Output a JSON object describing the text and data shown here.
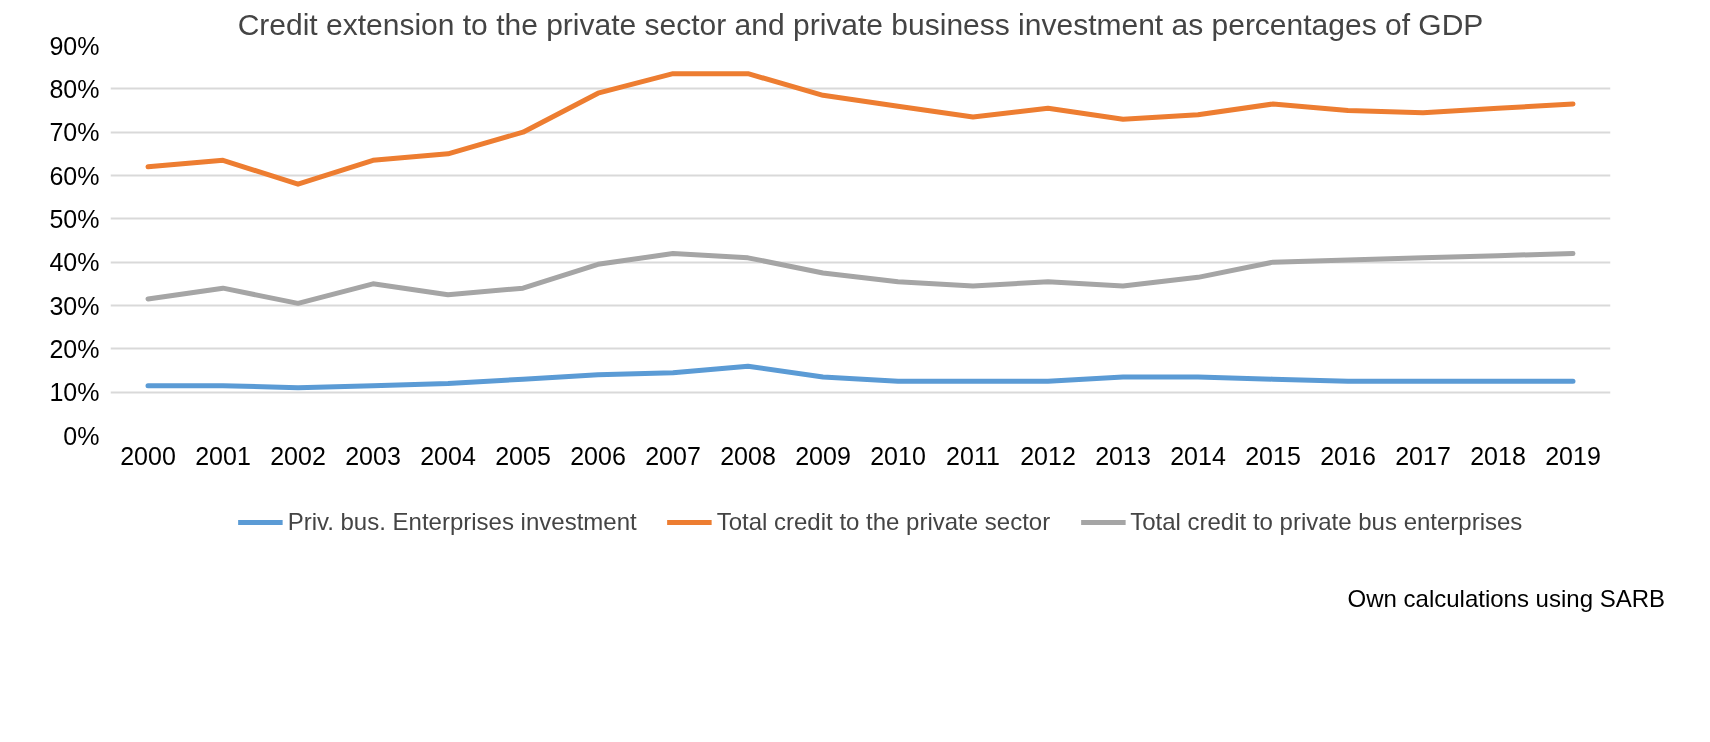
{
  "chart_data": {
    "type": "line",
    "title": "Credit extension to the private sector and private business investment as percentages of GDP",
    "categories": [
      "2000",
      "2001",
      "2002",
      "2003",
      "2004",
      "2005",
      "2006",
      "2007",
      "2008",
      "2009",
      "2010",
      "2011",
      "2012",
      "2013",
      "2014",
      "2015",
      "2016",
      "2017",
      "2018",
      "2019"
    ],
    "series": [
      {
        "name": "Priv. bus. Enterprises investment",
        "color": "#5b9bd5",
        "values": [
          11.5,
          11.5,
          11,
          11.5,
          12,
          13,
          14,
          14.5,
          16,
          13.5,
          12.5,
          12.5,
          12.5,
          13.5,
          13.5,
          13,
          12.5,
          12.5,
          12.5,
          12.5
        ]
      },
      {
        "name": "Total credit to the private sector",
        "color": "#ed7d31",
        "values": [
          62,
          63.5,
          58,
          63.5,
          65,
          70,
          79,
          83.5,
          83.5,
          78.5,
          76,
          73.5,
          75.5,
          73,
          74,
          76.5,
          75,
          74.5,
          75.5,
          76.5
        ]
      },
      {
        "name": "Total credit to private bus enterprises",
        "color": "#a5a5a5",
        "values": [
          31.5,
          34,
          30.5,
          35,
          32.5,
          34,
          39.5,
          42,
          41,
          37.5,
          35.5,
          34.5,
          35.5,
          34.5,
          36.5,
          40,
          40.5,
          41,
          41.5,
          42
        ]
      }
    ],
    "ylim": [
      0,
      90
    ],
    "yticks": [
      {
        "value": 0,
        "label": "0%"
      },
      {
        "value": 10,
        "label": "10%"
      },
      {
        "value": 20,
        "label": "20%"
      },
      {
        "value": 30,
        "label": "30%"
      },
      {
        "value": 40,
        "label": "40%"
      },
      {
        "value": 50,
        "label": "50%"
      },
      {
        "value": 60,
        "label": "60%"
      },
      {
        "value": 70,
        "label": "70%"
      },
      {
        "value": 80,
        "label": "80%"
      },
      {
        "value": 90,
        "label": "90%"
      }
    ],
    "grid": "y",
    "legend": "bottom",
    "marker": "none",
    "line_style": "solid",
    "annotations": [
      "Own calculations using SARB"
    ]
  }
}
